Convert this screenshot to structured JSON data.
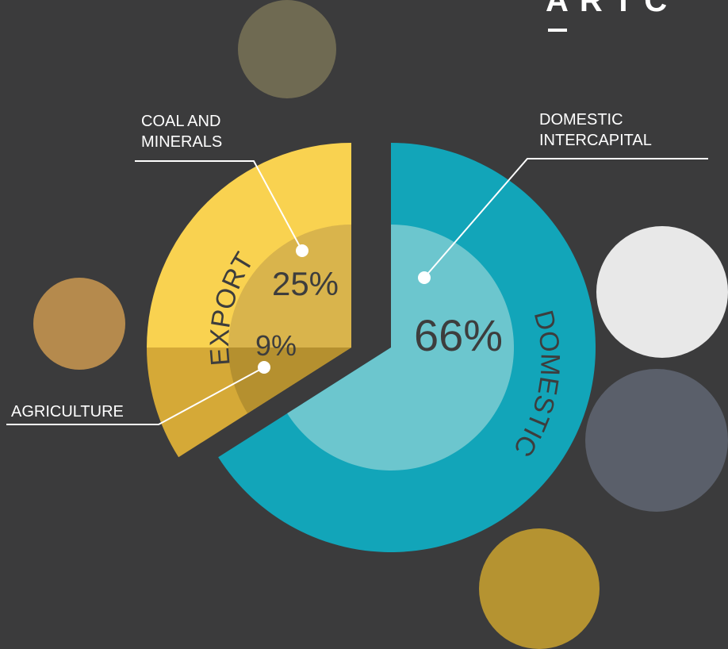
{
  "logo": "ARTC",
  "chart_data": {
    "type": "pie",
    "categories": [
      "COAL AND MINERALS",
      "AGRICULTURE",
      "DOMESTIC INTERCAPITAL"
    ],
    "values": [
      25,
      9,
      66
    ],
    "value_labels": [
      "25%",
      "9%",
      "66%"
    ],
    "colors": [
      "#f9d250",
      "#d5a937",
      "#12a5b9"
    ],
    "inner_colors": [
      "#d9b44c",
      "#b5902f",
      "#6cc6ce"
    ],
    "group_labels": [
      "EXPORT",
      "DOMESTIC"
    ]
  }
}
